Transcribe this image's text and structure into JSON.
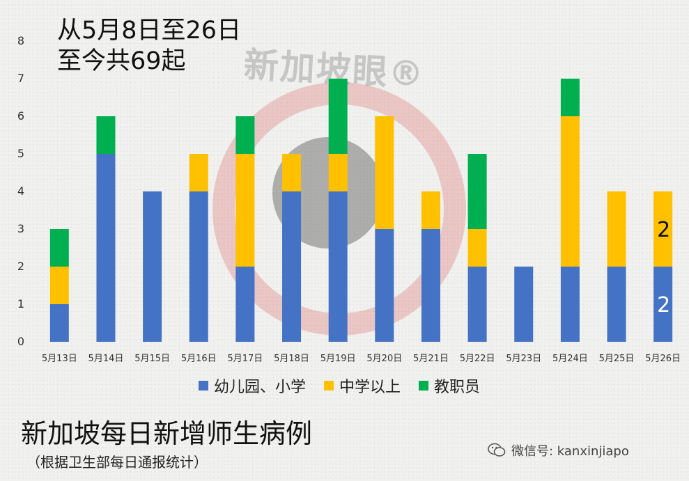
{
  "chart_data": {
    "type": "bar",
    "stacked": true,
    "categories": [
      "5月13日",
      "5月14日",
      "5月15日",
      "5月16日",
      "5月17日",
      "5月18日",
      "5月19日",
      "5月20日",
      "5月21日",
      "5月22日",
      "5月23日",
      "5月24日",
      "5月25日",
      "5月26日"
    ],
    "series": [
      {
        "name": "幼儿园、小学",
        "color": "#4472c4",
        "values": [
          1,
          5,
          4,
          4,
          2,
          4,
          4,
          3,
          3,
          2,
          2,
          2,
          2,
          2
        ]
      },
      {
        "name": "中学以上",
        "color": "#ffc000",
        "values": [
          1,
          0,
          0,
          1,
          3,
          1,
          1,
          3,
          1,
          1,
          0,
          4,
          2,
          2
        ]
      },
      {
        "name": "教职员",
        "color": "#00b050",
        "values": [
          1,
          1,
          0,
          0,
          1,
          0,
          2,
          0,
          0,
          2,
          0,
          1,
          0,
          0
        ]
      }
    ],
    "ylim": [
      0,
      8
    ],
    "yticks": [
      0,
      1,
      2,
      3,
      4,
      5,
      6,
      7,
      8
    ],
    "grid": false,
    "legend_position": "bottom",
    "data_labels": [
      {
        "category": "5月26日",
        "series": "中学以上",
        "text": "2",
        "color": "#111111"
      },
      {
        "category": "5月26日",
        "series": "幼儿园、小学",
        "text": "2",
        "color": "#ffffff"
      }
    ]
  },
  "annotation": {
    "line1": "从5月8日至26日",
    "line2": "至今共69起"
  },
  "footer": {
    "title": "新加坡每日新增师生病例",
    "subtitle": "（根据卫生部每日通报统计）"
  },
  "credit": {
    "text": "微信号: kanxinjiapo",
    "icon": "wechat-icon"
  },
  "watermark": {
    "text": "新加坡眼®"
  }
}
